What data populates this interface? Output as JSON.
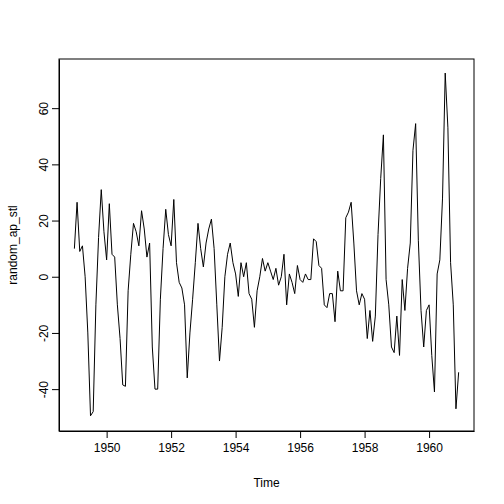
{
  "chart_data": {
    "type": "line",
    "x_label": "Time",
    "y_label": "random_ap_stl",
    "color": "#000000",
    "line_style": "solid",
    "xlim": [
      1948.523,
      1961.393
    ],
    "xticks": [
      1950,
      1952,
      1954,
      1956,
      1958,
      1960
    ],
    "ylim": [
      -54.9,
      77.5
    ],
    "yticks": [
      -40,
      -20,
      0,
      20,
      40,
      60
    ],
    "x": [
      1949,
      1949.0833,
      1949.1667,
      1949.25,
      1949.3333,
      1949.4167,
      1949.5,
      1949.5833,
      1949.6667,
      1949.75,
      1949.8333,
      1949.9167,
      1950,
      1950.0833,
      1950.1667,
      1950.25,
      1950.3333,
      1950.4167,
      1950.5,
      1950.5833,
      1950.6667,
      1950.75,
      1950.8333,
      1950.9167,
      1951,
      1951.0833,
      1951.1667,
      1951.25,
      1951.3333,
      1951.4167,
      1951.5,
      1951.5833,
      1951.6667,
      1951.75,
      1951.8333,
      1951.9167,
      1952,
      1952.0833,
      1952.1667,
      1952.25,
      1952.3333,
      1952.4167,
      1952.5,
      1952.5833,
      1952.6667,
      1952.75,
      1952.8333,
      1952.9167,
      1953,
      1953.0833,
      1953.1667,
      1953.25,
      1953.3333,
      1953.4167,
      1953.5,
      1953.5833,
      1953.6667,
      1953.75,
      1953.8333,
      1953.9167,
      1954,
      1954.0833,
      1954.1667,
      1954.25,
      1954.3333,
      1954.4167,
      1954.5,
      1954.5833,
      1954.6667,
      1954.75,
      1954.8333,
      1954.9167,
      1955,
      1955.0833,
      1955.1667,
      1955.25,
      1955.3333,
      1955.4167,
      1955.5,
      1955.5833,
      1955.6667,
      1955.75,
      1955.8333,
      1955.9167,
      1956,
      1956.0833,
      1956.1667,
      1956.25,
      1956.3333,
      1956.4167,
      1956.5,
      1956.5833,
      1956.6667,
      1956.75,
      1956.8333,
      1956.9167,
      1957,
      1957.0833,
      1957.1667,
      1957.25,
      1957.3333,
      1957.4167,
      1957.5,
      1957.5833,
      1957.6667,
      1957.75,
      1957.8333,
      1957.9167,
      1958,
      1958.0833,
      1958.1667,
      1958.25,
      1958.3333,
      1958.4167,
      1958.5,
      1958.5833,
      1958.6667,
      1958.75,
      1958.8333,
      1958.9167,
      1959,
      1959.0833,
      1959.1667,
      1959.25,
      1959.3333,
      1959.4167,
      1959.5,
      1959.5833,
      1959.6667,
      1959.75,
      1959.8333,
      1959.9167,
      1960,
      1960.0833,
      1960.1667,
      1960.25,
      1960.3333,
      1960.4167,
      1960.5,
      1960.5833,
      1960.6667,
      1960.75,
      1960.8333,
      1960.9167
    ],
    "values": [
      10,
      26.5,
      9,
      11,
      0,
      -20,
      -49.5,
      -48,
      -10,
      14,
      31,
      16,
      6,
      26,
      8,
      7,
      -10,
      -22,
      -38.5,
      -39,
      -5,
      8,
      19,
      16,
      11,
      23.5,
      17,
      7,
      12,
      -25,
      -40,
      -40,
      -8,
      10,
      24,
      15,
      11,
      27.5,
      5,
      -2,
      -4,
      -10,
      -36,
      -20,
      -8,
      5,
      19,
      10,
      3.5,
      12,
      17,
      20.5,
      10,
      -10,
      -30,
      -18,
      0,
      8,
      12,
      5,
      1,
      -7,
      5,
      0,
      5,
      -6,
      -8,
      -18,
      -5,
      0,
      6.5,
      2,
      5,
      2,
      -1,
      3,
      -3,
      0,
      8,
      -10,
      1,
      -2,
      -6,
      4,
      -1,
      -2,
      1,
      -1,
      -1,
      13.5,
      12.5,
      4,
      3,
      -10,
      -11,
      -6,
      -6,
      -16,
      2,
      -5,
      -5,
      21,
      23,
      26.5,
      12,
      -5,
      -10,
      -6,
      -8,
      -22,
      -12,
      -23,
      -14,
      15,
      35,
      50.5,
      -1,
      -10,
      -25,
      -27,
      -14,
      -28,
      -1,
      -12,
      3,
      12,
      45,
      54.5,
      13,
      -12,
      -25,
      -12,
      -10,
      -28,
      -41,
      1,
      6,
      28,
      72.5,
      53,
      5,
      -10,
      -47,
      -34
    ]
  }
}
